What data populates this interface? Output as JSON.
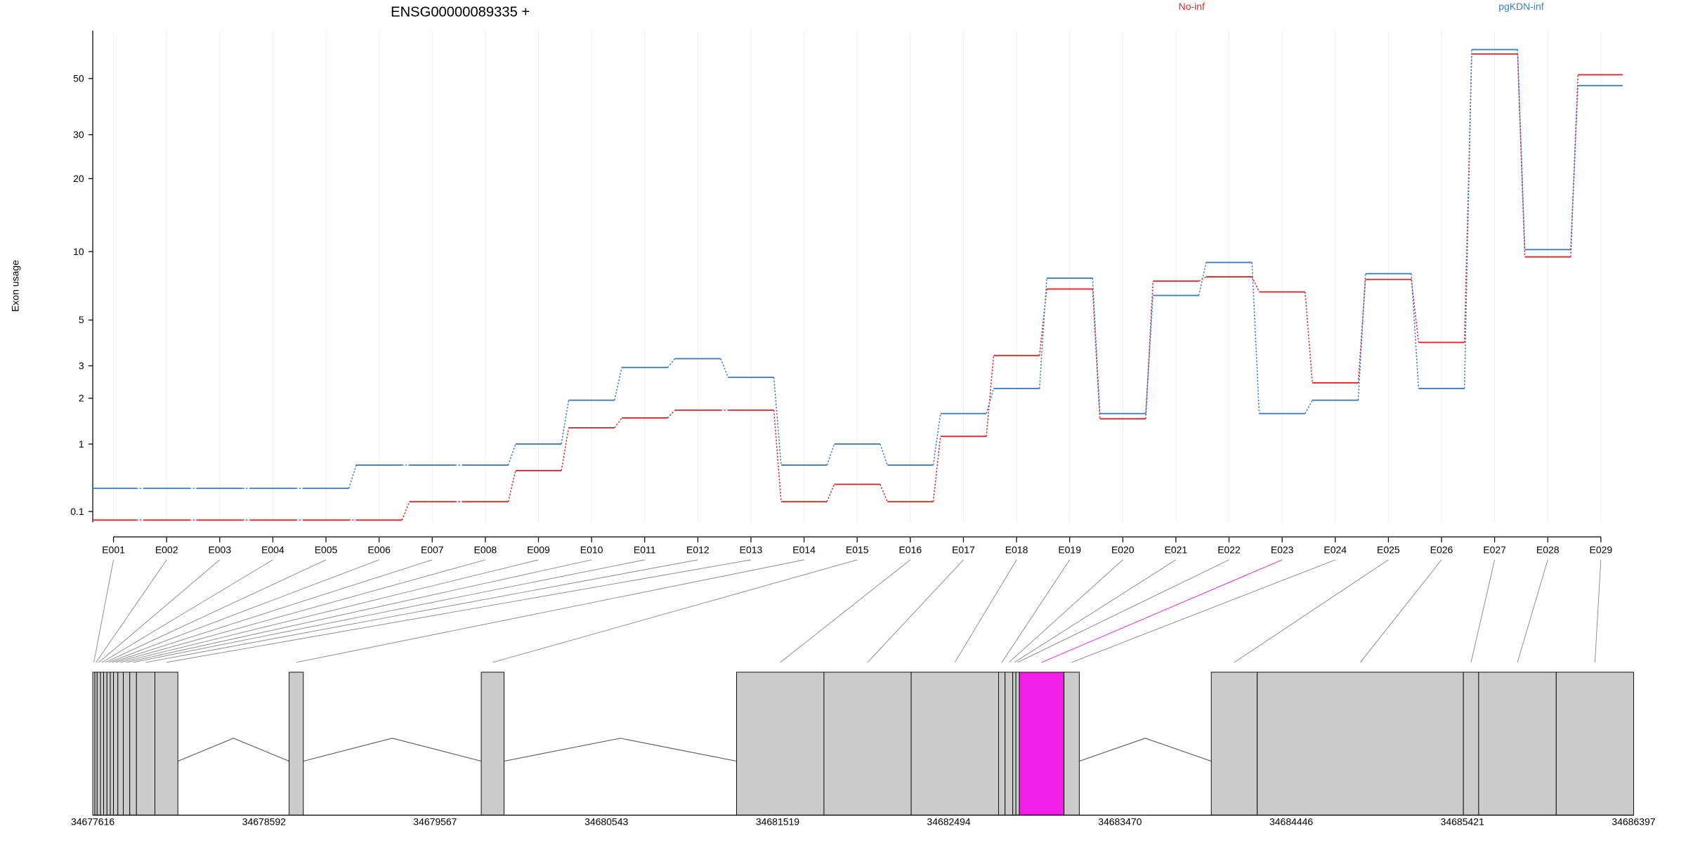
{
  "chart_data": {
    "type": "line",
    "title": "ENSG00000089335 +",
    "y_label": "Exon usage",
    "categories": [
      "E001",
      "E002",
      "E003",
      "E004",
      "E005",
      "E006",
      "E007",
      "E008",
      "E009",
      "E010",
      "E011",
      "E012",
      "E013",
      "E014",
      "E015",
      "E016",
      "E017",
      "E018",
      "E019",
      "E020",
      "E021",
      "E022",
      "E023",
      "E024",
      "E025",
      "E026",
      "E027",
      "E028",
      "E029"
    ],
    "series": [
      {
        "name": "No-inf",
        "color": "#e0262b",
        "values": [
          0.02,
          0.02,
          0.02,
          0.02,
          0.02,
          0.02,
          0.2,
          0.2,
          0.58,
          1.31,
          1.52,
          1.7,
          1.7,
          0.2,
          0.4,
          0.2,
          1.14,
          3.38,
          6.9,
          1.5,
          7.47,
          7.8,
          6.7,
          2.44,
          7.6,
          3.92,
          62.4,
          9.5,
          51.7
        ]
      },
      {
        "name": "pgKDN-inf",
        "color": "#3d7ebf",
        "values": [
          0.35,
          0.35,
          0.35,
          0.35,
          0.35,
          0.66,
          0.66,
          0.66,
          1.0,
          1.95,
          2.94,
          3.26,
          2.61,
          0.66,
          1.0,
          0.66,
          1.62,
          2.27,
          7.7,
          1.62,
          6.46,
          9.0,
          1.62,
          1.95,
          8.05,
          2.27,
          64.9,
          10.2,
          46.9
        ]
      }
    ],
    "yscale": "log1p",
    "ylim": [
      0,
      77
    ],
    "yticks": [
      0.1,
      1,
      2,
      3,
      5,
      10,
      20,
      30,
      50
    ],
    "grid": true
  },
  "gene_model": {
    "xlim": [
      34677616,
      34686397
    ],
    "xticks": [
      34677616,
      34678592,
      34679567,
      34680543,
      34681519,
      34682494,
      34683470,
      34684446,
      34685421,
      34686397
    ],
    "exons": [
      [
        34677616,
        34677628
      ],
      [
        34677628,
        34677641
      ],
      [
        34677641,
        34677660
      ],
      [
        34677660,
        34677678
      ],
      [
        34677678,
        34677697
      ],
      [
        34677697,
        34677716
      ],
      [
        34677716,
        34677734
      ],
      [
        34677734,
        34677759
      ],
      [
        34677759,
        34677790
      ],
      [
        34677790,
        34677827
      ],
      [
        34677827,
        34677865
      ],
      [
        34677865,
        34677970
      ],
      [
        34677970,
        34678101
      ],
      [
        34678735,
        34678816
      ],
      [
        34679830,
        34679960
      ],
      [
        34681285,
        34681783
      ],
      [
        34681783,
        34682280
      ],
      [
        34682280,
        34682778
      ],
      [
        34682778,
        34682815
      ],
      [
        34682815,
        34682859
      ],
      [
        34682859,
        34682877
      ],
      [
        34682877,
        34682896
      ],
      [
        34682896,
        34683151
      ],
      [
        34683151,
        34683238
      ],
      [
        34683990,
        34684252
      ],
      [
        34684252,
        34685427
      ],
      [
        34685427,
        34685514
      ],
      [
        34685514,
        34685956
      ],
      [
        34685956,
        34686397
      ]
    ],
    "colors": [
      "#cccccc",
      "#cccccc",
      "#cccccc",
      "#cccccc",
      "#cccccc",
      "#cccccc",
      "#cccccc",
      "#cccccc",
      "#cccccc",
      "#cccccc",
      "#cccccc",
      "#cccccc",
      "#cccccc",
      "#cccccc",
      "#cccccc",
      "#cccccc",
      "#cccccc",
      "#cccccc",
      "#cccccc",
      "#cccccc",
      "#cccccc",
      "#cccccc",
      "#f01ee6",
      "#cccccc",
      "#cccccc",
      "#cccccc",
      "#cccccc",
      "#cccccc",
      "#cccccc"
    ]
  }
}
